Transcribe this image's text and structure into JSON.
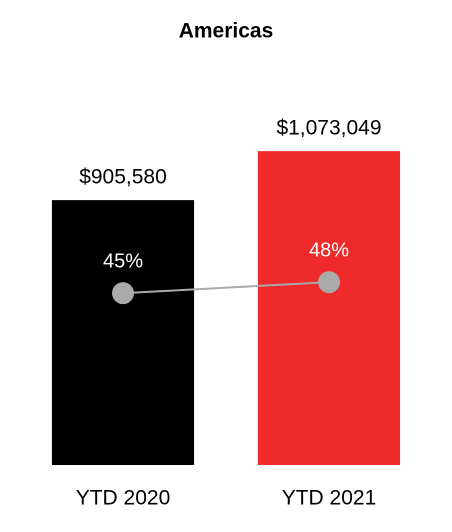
{
  "chart_data": {
    "type": "bar",
    "title": "Americas",
    "categories": [
      "YTD 2020",
      "YTD 2021"
    ],
    "series": [
      {
        "type": "bar",
        "colors": [
          "#000000",
          "#ee2a2a"
        ],
        "values": [
          905580,
          1073049
        ],
        "value_labels": [
          "$905,580",
          "$1,073,049"
        ]
      },
      {
        "type": "line",
        "axis": "y2",
        "color": "#aaaaaa",
        "values": [
          45,
          48
        ],
        "value_labels": [
          "45%",
          "48%"
        ]
      }
    ],
    "ylim": [
      0,
      1200000
    ],
    "y2lim": [
      -2,
      94
    ]
  }
}
